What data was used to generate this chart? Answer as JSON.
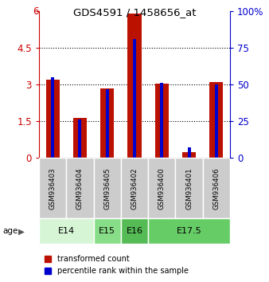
{
  "title": "GDS4591 / 1458656_at",
  "samples": [
    "GSM936403",
    "GSM936404",
    "GSM936405",
    "GSM936402",
    "GSM936400",
    "GSM936401",
    "GSM936406"
  ],
  "transformed_count": [
    3.2,
    1.65,
    2.85,
    5.9,
    3.05,
    0.22,
    3.1
  ],
  "percentile_rank": [
    55,
    26,
    47,
    81,
    51,
    7,
    50
  ],
  "age_groups": [
    {
      "label": "E14",
      "start": 0,
      "end": 2,
      "color": "#d5f5d5"
    },
    {
      "label": "E15",
      "start": 2,
      "end": 3,
      "color": "#88dd88"
    },
    {
      "label": "E16",
      "start": 3,
      "end": 4,
      "color": "#55bb55"
    },
    {
      "label": "E17.5",
      "start": 4,
      "end": 7,
      "color": "#66cc66"
    }
  ],
  "ylim_left": [
    0,
    6
  ],
  "ylim_right": [
    0,
    100
  ],
  "yticks_left": [
    0,
    1.5,
    3,
    4.5,
    6
  ],
  "yticks_right": [
    0,
    25,
    50,
    75,
    100
  ],
  "bar_color_red": "#bb1100",
  "bar_color_blue": "#0000cc",
  "bar_width": 0.5,
  "blue_bar_width": 0.12,
  "background_color": "#ffffff",
  "plot_bg_color": "#ffffff",
  "left_tick_color": "#cc0000",
  "right_tick_color": "#0000cc",
  "sample_box_color": "#cccccc"
}
